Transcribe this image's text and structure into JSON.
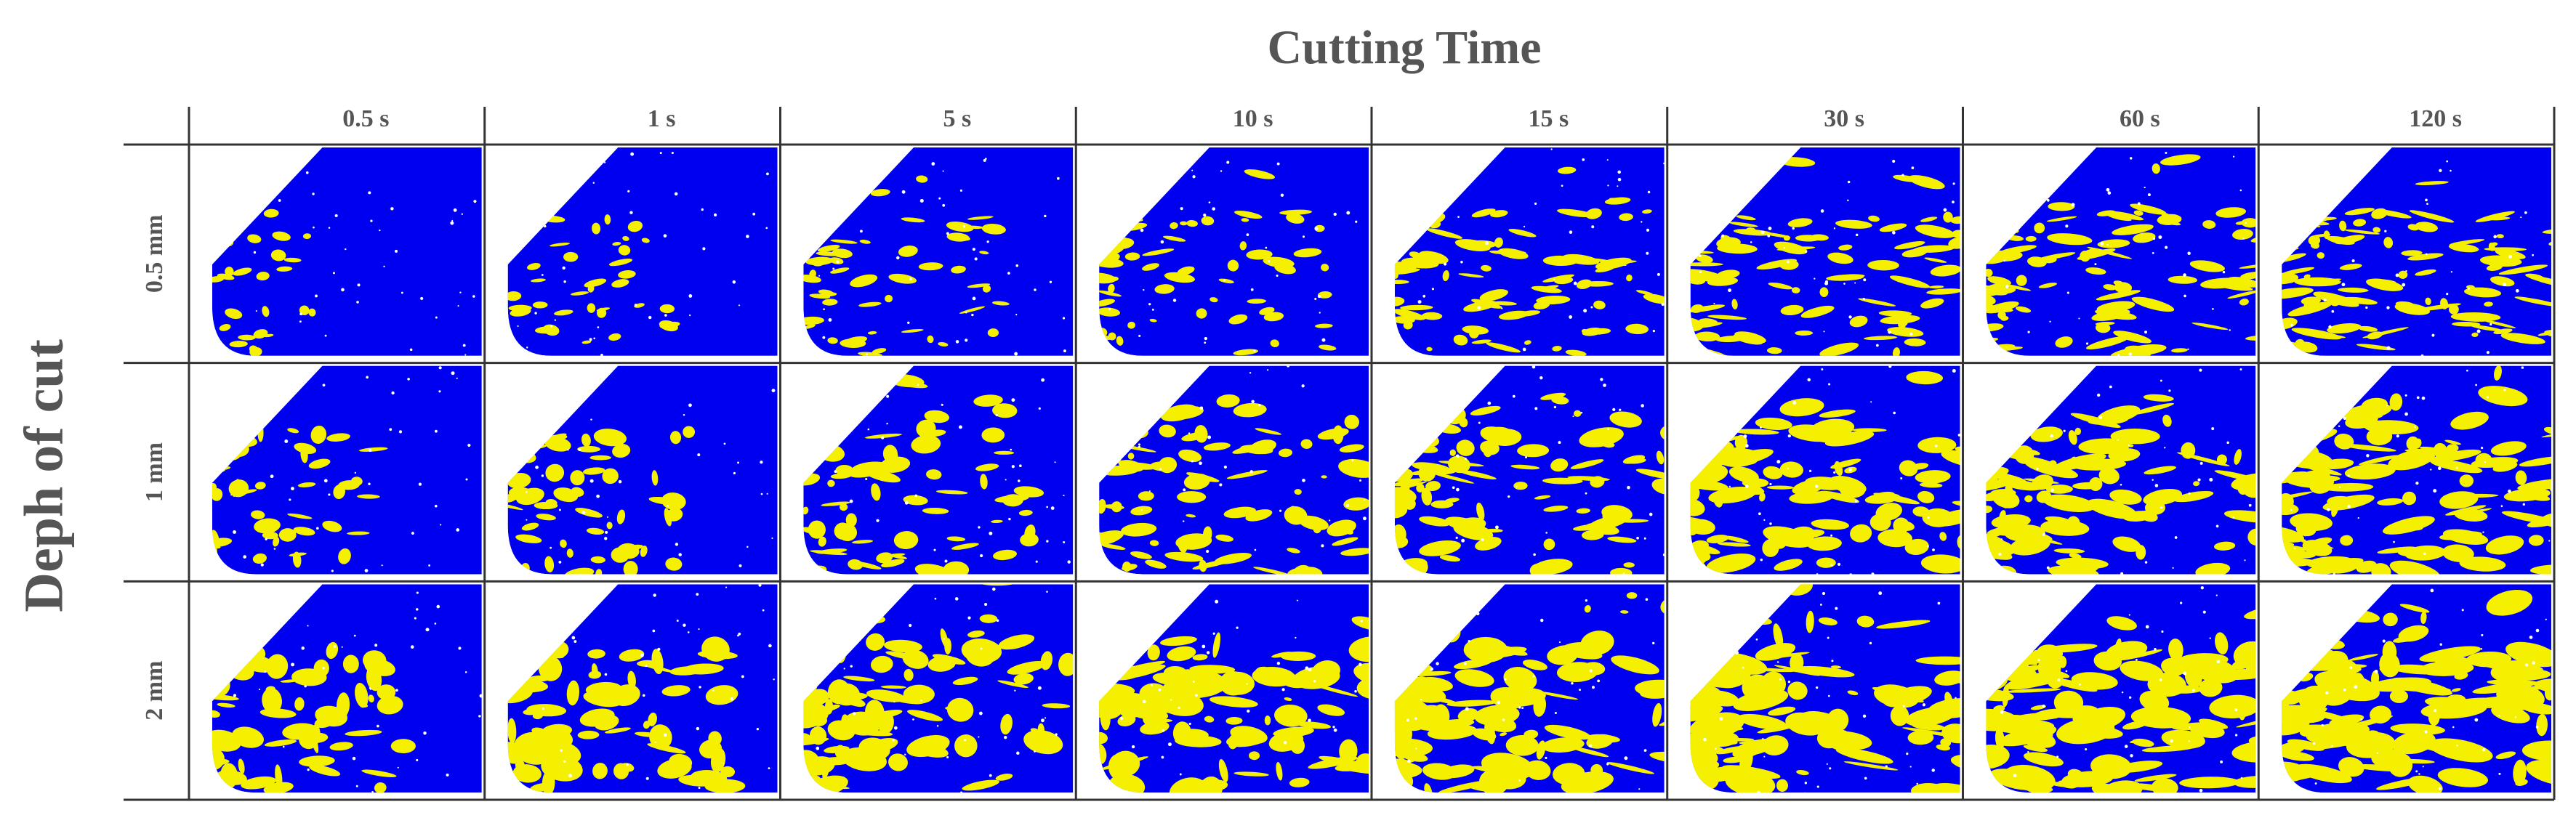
{
  "figure": {
    "title": "Cutting Time",
    "row_axis_label": "Deph of cut",
    "columns": [
      "0.5 s",
      "1 s",
      "5 s",
      "10 s",
      "15 s",
      "30 s",
      "60 s",
      "120 s"
    ],
    "rows": [
      "0.5 mm",
      "1 mm",
      "2 mm"
    ]
  }
}
